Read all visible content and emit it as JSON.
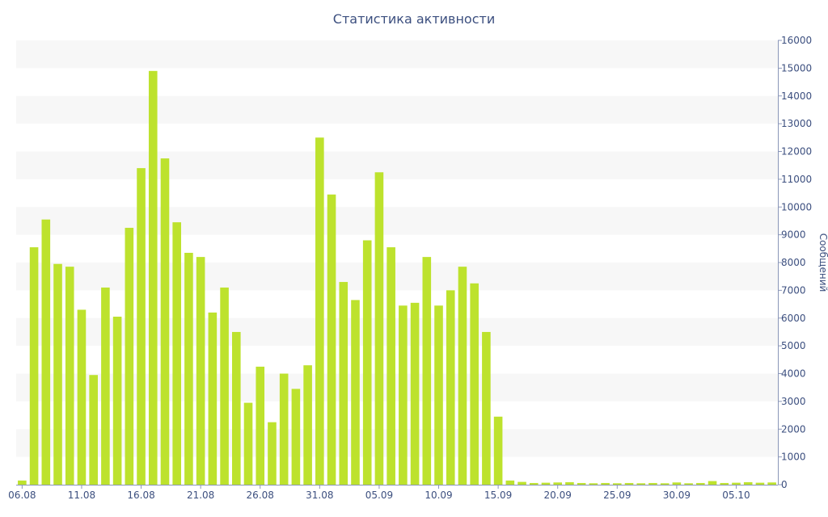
{
  "chart_data": {
    "type": "bar",
    "title": "Статистика активности",
    "xlabel": "",
    "ylabel": "Сообщений",
    "ylim": [
      0,
      16000
    ],
    "y_ticks": [
      0,
      1000,
      2000,
      3000,
      4000,
      5000,
      6000,
      7000,
      8000,
      9000,
      10000,
      11000,
      12000,
      13000,
      14000,
      15000,
      16000
    ],
    "y_axis_side": "right",
    "grid": "horizontal alternating bands",
    "bar_color": "#bde22d",
    "categories": [
      "06.08",
      "07.08",
      "08.08",
      "09.08",
      "10.08",
      "11.08",
      "12.08",
      "13.08",
      "14.08",
      "15.08",
      "16.08",
      "17.08",
      "18.08",
      "19.08",
      "20.08",
      "21.08",
      "22.08",
      "23.08",
      "24.08",
      "25.08",
      "26.08",
      "27.08",
      "28.08",
      "29.08",
      "30.08",
      "31.08",
      "01.09",
      "02.09",
      "03.09",
      "04.09",
      "05.09",
      "06.09",
      "07.09",
      "08.09",
      "09.09",
      "10.09",
      "11.09",
      "12.09",
      "13.09",
      "14.09",
      "15.09",
      "16.09",
      "17.09",
      "18.09",
      "19.09",
      "20.09",
      "21.09",
      "22.09",
      "23.09",
      "24.09",
      "25.09",
      "26.09",
      "27.09",
      "28.09",
      "29.09",
      "30.09",
      "01.10",
      "02.10",
      "03.10",
      "04.10",
      "05.10",
      "06.10",
      "07.10",
      "08.10"
    ],
    "values": [
      150,
      8550,
      9550,
      7950,
      7850,
      6300,
      3950,
      7100,
      6050,
      9250,
      11400,
      14900,
      11750,
      9450,
      8350,
      8200,
      6200,
      7100,
      5500,
      2950,
      4250,
      2250,
      4000,
      3450,
      4300,
      12500,
      10450,
      7300,
      6650,
      8800,
      11250,
      8550,
      6450,
      6550,
      8200,
      6450,
      7000,
      7850,
      7250,
      5500,
      2450,
      150,
      100,
      60,
      70,
      80,
      90,
      60,
      50,
      60,
      50,
      60,
      50,
      60,
      50,
      80,
      50,
      60,
      130,
      60,
      70,
      90,
      70,
      80
    ],
    "x_tick_labels": [
      "06.08",
      "11.08",
      "16.08",
      "21.08",
      "26.08",
      "31.08",
      "05.09",
      "10.09",
      "15.09",
      "20.09",
      "25.09",
      "30.09",
      "05.10"
    ],
    "x_tick_step": 5
  }
}
